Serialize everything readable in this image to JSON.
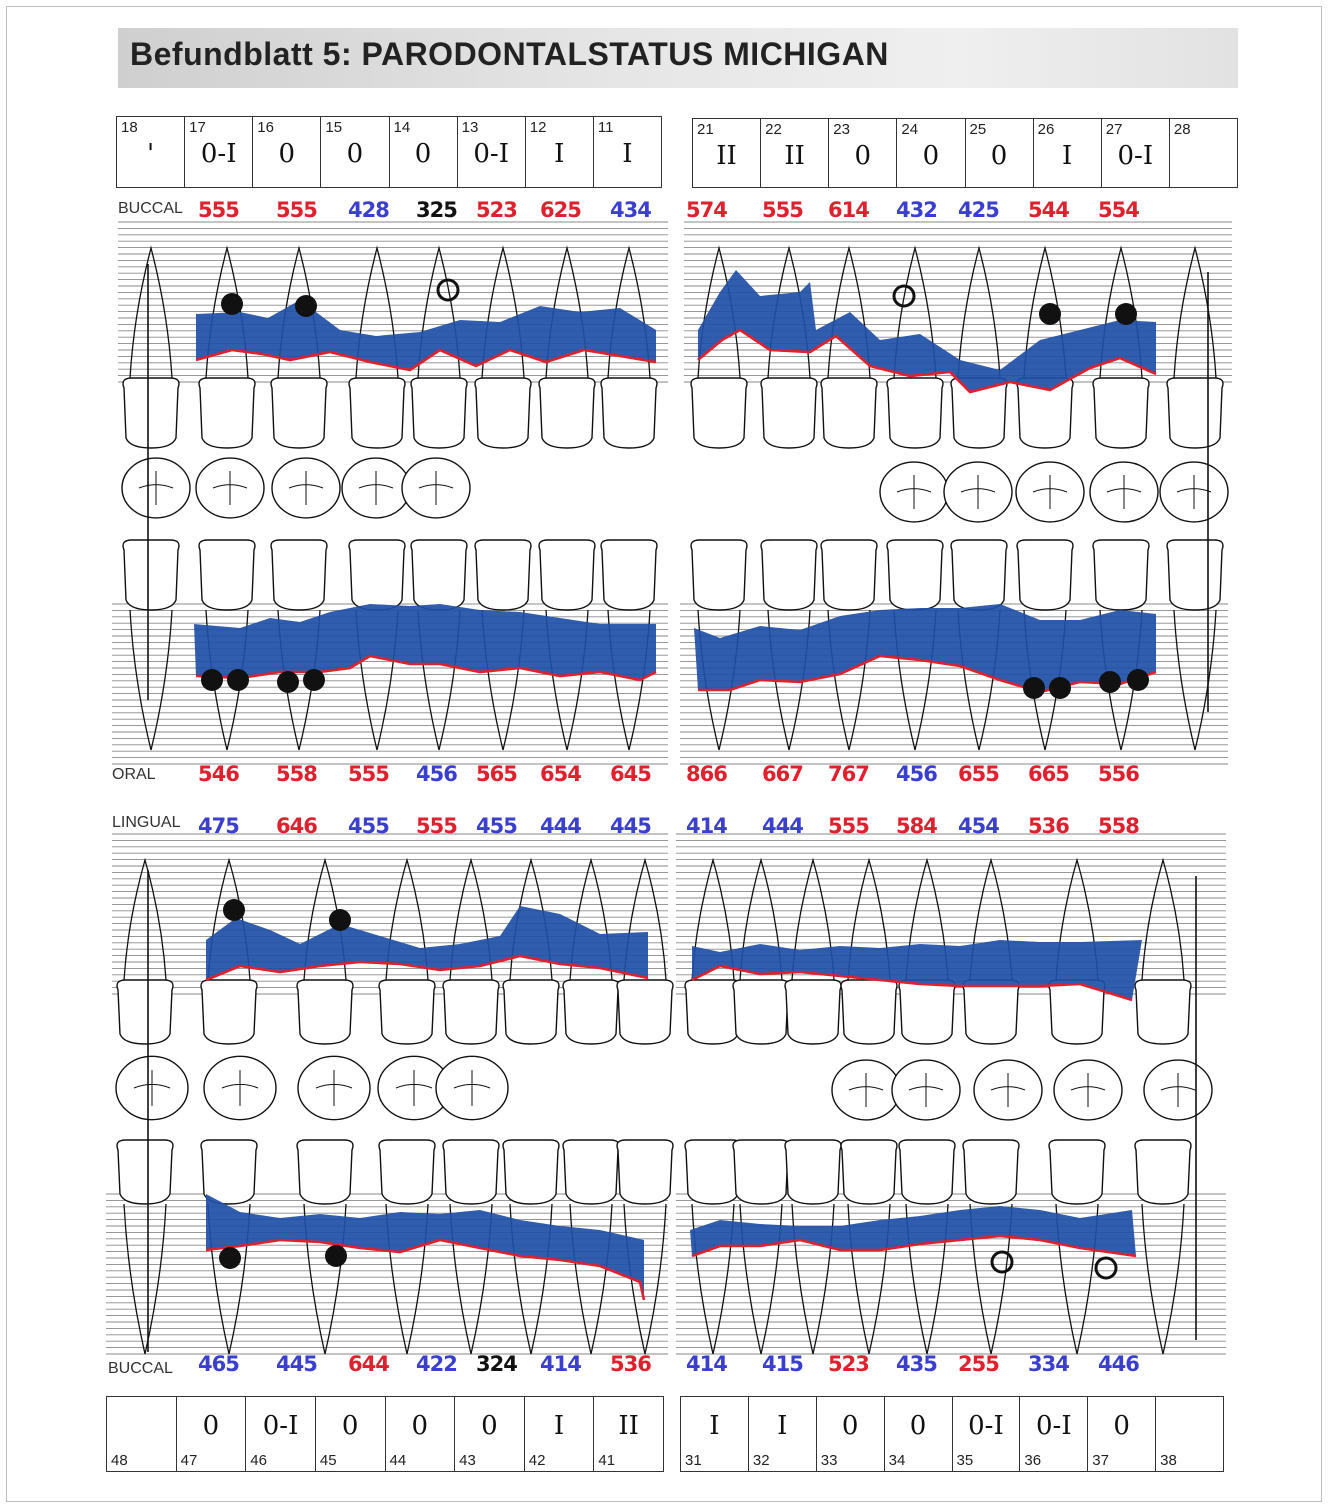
{
  "title": "Befundblatt 5: PARODONTALSTATUS MICHIGAN",
  "colors": {
    "pocket_band": "#1f4fa8",
    "gingiva_line": "#e0202c",
    "implant_marker": "#111111"
  },
  "upper_teeth": [
    {
      "num": "18",
      "grade": "'"
    },
    {
      "num": "17",
      "grade": "0-I"
    },
    {
      "num": "16",
      "grade": "0"
    },
    {
      "num": "15",
      "grade": "0"
    },
    {
      "num": "14",
      "grade": "0"
    },
    {
      "num": "13",
      "grade": "0-I"
    },
    {
      "num": "12",
      "grade": "I"
    },
    {
      "num": "11",
      "grade": "I"
    },
    {
      "num": "21",
      "grade": "II"
    },
    {
      "num": "22",
      "grade": "II"
    },
    {
      "num": "23",
      "grade": "0"
    },
    {
      "num": "24",
      "grade": "0"
    },
    {
      "num": "25",
      "grade": "0"
    },
    {
      "num": "26",
      "grade": "I"
    },
    {
      "num": "27",
      "grade": "0-I"
    },
    {
      "num": "28",
      "grade": ""
    }
  ],
  "lower_teeth": [
    {
      "num": "48",
      "grade": ""
    },
    {
      "num": "47",
      "grade": "0"
    },
    {
      "num": "46",
      "grade": "0-I"
    },
    {
      "num": "45",
      "grade": "0"
    },
    {
      "num": "44",
      "grade": "0"
    },
    {
      "num": "43",
      "grade": "0"
    },
    {
      "num": "42",
      "grade": "I"
    },
    {
      "num": "41",
      "grade": "II"
    },
    {
      "num": "31",
      "grade": "I"
    },
    {
      "num": "32",
      "grade": "I"
    },
    {
      "num": "33",
      "grade": "0"
    },
    {
      "num": "34",
      "grade": "0"
    },
    {
      "num": "35",
      "grade": "0-I"
    },
    {
      "num": "36",
      "grade": "0-I"
    },
    {
      "num": "37",
      "grade": "0"
    },
    {
      "num": "38",
      "grade": ""
    }
  ],
  "labels": {
    "buccal_upper": "BUCCAL",
    "oral": "ORAL",
    "lingual": "LINGUAL",
    "buccal_lower": "BUCCAL"
  },
  "depths": {
    "buccal_upper": [
      {
        "t": "555",
        "c": "red"
      },
      {
        "t": "555",
        "c": "red"
      },
      {
        "t": "428",
        "c": "blue"
      },
      {
        "t": "325",
        "c": "blk"
      },
      {
        "t": "523",
        "c": "red"
      },
      {
        "t": "625",
        "c": "red"
      },
      {
        "t": "434",
        "c": "blue"
      },
      {
        "t": "574",
        "c": "red"
      },
      {
        "t": "555",
        "c": "red"
      },
      {
        "t": "614",
        "c": "red"
      },
      {
        "t": "432",
        "c": "blue"
      },
      {
        "t": "425",
        "c": "blue"
      },
      {
        "t": "544",
        "c": "red"
      },
      {
        "t": "554",
        "c": "red"
      }
    ],
    "oral": [
      {
        "t": "546",
        "c": "red"
      },
      {
        "t": "558",
        "c": "red"
      },
      {
        "t": "555",
        "c": "red"
      },
      {
        "t": "456",
        "c": "blue"
      },
      {
        "t": "565",
        "c": "red"
      },
      {
        "t": "654",
        "c": "red"
      },
      {
        "t": "645",
        "c": "red"
      },
      {
        "t": "866",
        "c": "red"
      },
      {
        "t": "667",
        "c": "red"
      },
      {
        "t": "767",
        "c": "red"
      },
      {
        "t": "456",
        "c": "blue"
      },
      {
        "t": "655",
        "c": "red"
      },
      {
        "t": "665",
        "c": "red"
      },
      {
        "t": "556",
        "c": "red"
      }
    ],
    "lingual": [
      {
        "t": "475",
        "c": "blue"
      },
      {
        "t": "646",
        "c": "red"
      },
      {
        "t": "455",
        "c": "blue"
      },
      {
        "t": "555",
        "c": "red"
      },
      {
        "t": "455",
        "c": "blue"
      },
      {
        "t": "444",
        "c": "blue"
      },
      {
        "t": "445",
        "c": "blue"
      },
      {
        "t": "414",
        "c": "blue"
      },
      {
        "t": "444",
        "c": "blue"
      },
      {
        "t": "555",
        "c": "red"
      },
      {
        "t": "584",
        "c": "red"
      },
      {
        "t": "454",
        "c": "blue"
      },
      {
        "t": "536",
        "c": "red"
      },
      {
        "t": "558",
        "c": "red"
      }
    ],
    "buccal_lower": [
      {
        "t": "465",
        "c": "blue"
      },
      {
        "t": "445",
        "c": "blue"
      },
      {
        "t": "644",
        "c": "red"
      },
      {
        "t": "422",
        "c": "blue"
      },
      {
        "t": "324",
        "c": "blk"
      },
      {
        "t": "414",
        "c": "blue"
      },
      {
        "t": "536",
        "c": "red"
      },
      {
        "t": "414",
        "c": "blue"
      },
      {
        "t": "415",
        "c": "blue"
      },
      {
        "t": "523",
        "c": "red"
      },
      {
        "t": "435",
        "c": "blue"
      },
      {
        "t": "255",
        "c": "red"
      },
      {
        "t": "334",
        "c": "blue"
      },
      {
        "t": "446",
        "c": "blue"
      }
    ]
  }
}
